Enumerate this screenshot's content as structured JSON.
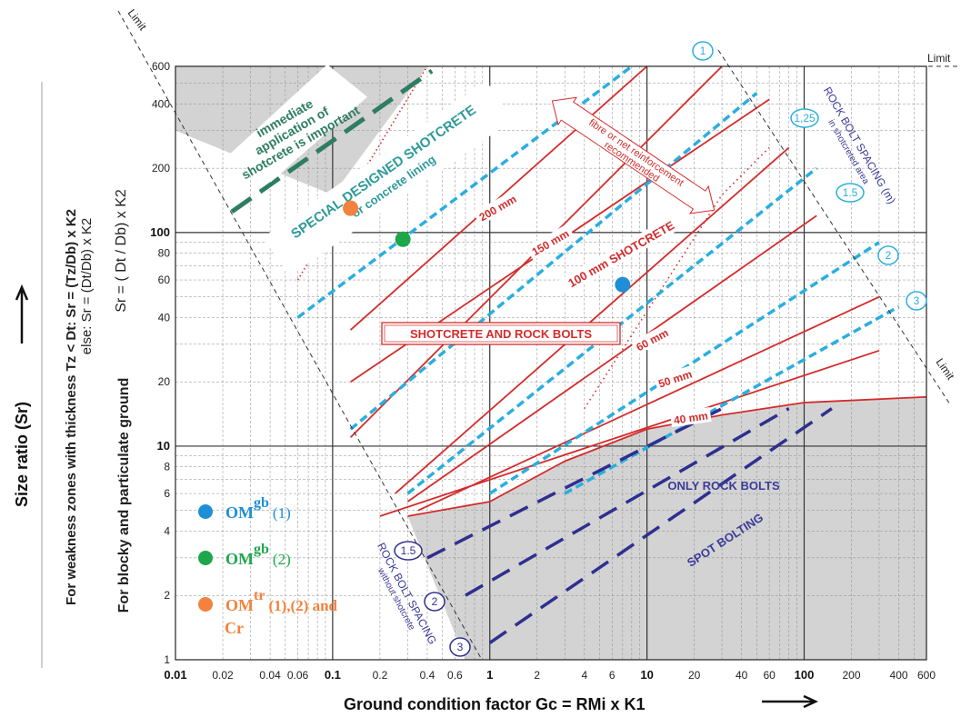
{
  "chart_data": {
    "type": "line",
    "x_scale": "log",
    "y_scale": "log",
    "xlim": [
      0.01,
      600
    ],
    "ylim": [
      1,
      600
    ],
    "grid": true,
    "xlabel": "Ground condition factor   Gc = RMi x K1",
    "ylabel_main": "Size ratio  (Sr)",
    "ylabel_weakness": "For weakness zones with thickness Tz < Dt: Sr = (Tz/Db) x K2",
    "ylabel_weakness_else": "else: Sr = (Dt/Db) x K2",
    "ylabel_blocky": "For blocky and particulate ground",
    "ylabel_formula": "Sr = ( Dt / Db) x K2",
    "x_tick_labels": [
      {
        "v": 0.01,
        "label": "0.01",
        "major": true
      },
      {
        "v": 0.02,
        "label": "0.02",
        "major": false
      },
      {
        "v": 0.04,
        "label": "0.04",
        "major": false
      },
      {
        "v": 0.06,
        "label": "0.06",
        "major": false
      },
      {
        "v": 0.1,
        "label": "0.1",
        "major": true
      },
      {
        "v": 0.2,
        "label": "0.2",
        "major": false
      },
      {
        "v": 0.4,
        "label": "0.4",
        "major": false
      },
      {
        "v": 0.6,
        "label": "0.6",
        "major": false
      },
      {
        "v": 1,
        "label": "1",
        "major": true
      },
      {
        "v": 2,
        "label": "2",
        "major": false
      },
      {
        "v": 4,
        "label": "4",
        "major": false
      },
      {
        "v": 6,
        "label": "6",
        "major": false
      },
      {
        "v": 10,
        "label": "10",
        "major": true
      },
      {
        "v": 20,
        "label": "20",
        "major": false
      },
      {
        "v": 40,
        "label": "40",
        "major": false
      },
      {
        "v": 60,
        "label": "60",
        "major": false
      },
      {
        "v": 100,
        "label": "100",
        "major": true
      },
      {
        "v": 200,
        "label": "200",
        "major": false
      },
      {
        "v": 400,
        "label": "400",
        "major": false
      },
      {
        "v": 600,
        "label": "600",
        "major": false
      }
    ],
    "y_tick_labels": [
      {
        "v": 1,
        "label": "1",
        "major": false
      },
      {
        "v": 2,
        "label": "2",
        "major": false
      },
      {
        "v": 4,
        "label": "4",
        "major": false
      },
      {
        "v": 6,
        "label": "6",
        "major": false
      },
      {
        "v": 8,
        "label": "8",
        "major": false
      },
      {
        "v": 10,
        "label": "10",
        "major": true
      },
      {
        "v": 20,
        "label": "20",
        "major": false
      },
      {
        "v": 40,
        "label": "40",
        "major": false
      },
      {
        "v": 60,
        "label": "60",
        "major": false
      },
      {
        "v": 80,
        "label": "80",
        "major": false
      },
      {
        "v": 100,
        "label": "100",
        "major": true
      },
      {
        "v": 200,
        "label": "200",
        "major": false
      },
      {
        "v": 400,
        "label": "400",
        "major": false
      },
      {
        "v": 600,
        "label": "600",
        "major": false
      }
    ],
    "shaded_regions": [
      {
        "name": "immediate-application",
        "color": "#d3d3d3",
        "points": [
          [
            0.01,
            600
          ],
          [
            0.4,
            600
          ],
          [
            0.1,
            150
          ],
          [
            0.01,
            300
          ]
        ]
      },
      {
        "name": "spot-bolting",
        "color": "#d3d3d3",
        "points": [
          [
            0.7,
            1
          ],
          [
            600,
            1
          ],
          [
            600,
            17
          ],
          [
            100,
            16
          ],
          [
            30,
            14
          ],
          [
            10,
            12
          ],
          [
            3,
            8.5
          ],
          [
            1,
            5.5
          ],
          [
            0.3,
            4.7
          ]
        ]
      }
    ],
    "limit_lines": [
      {
        "label": "Limit",
        "points": [
          [
            0.01,
            300
          ],
          [
            0.7,
            1
          ]
        ]
      },
      {
        "label": "Limit",
        "points": [
          [
            0.01,
            600
          ],
          [
            600,
            600
          ]
        ]
      },
      {
        "label": "Limit",
        "points": [
          [
            100,
            600
          ],
          [
            1000,
            17
          ]
        ]
      }
    ],
    "shotcrete_lines": [
      {
        "label": "200 mm",
        "points": [
          [
            0.13,
            11
          ],
          [
            30,
            600
          ]
        ]
      },
      {
        "label": "150 mm",
        "points": [
          [
            0.13,
            35
          ],
          [
            10,
            600
          ]
        ]
      },
      {
        "label": "100 mm SHOTCRETE",
        "points": [
          [
            0.13,
            20
          ],
          [
            60,
            420
          ]
        ]
      },
      {
        "label": "",
        "points": [
          [
            0.25,
            6
          ],
          [
            80,
            250
          ]
        ]
      },
      {
        "label": "",
        "points": [
          [
            0.3,
            5.5
          ],
          [
            120,
            120
          ]
        ]
      },
      {
        "label": "60 mm",
        "points": [
          [
            0.35,
            5
          ],
          [
            300,
            50
          ]
        ]
      },
      {
        "label": "50 mm",
        "points": [
          [
            0.2,
            4.7
          ],
          [
            300,
            28
          ]
        ]
      },
      {
        "label": "40 mm",
        "points": [
          [
            0.3,
            4.7
          ],
          [
            1,
            5.5
          ],
          [
            3,
            8.5
          ],
          [
            10,
            12
          ],
          [
            30,
            14
          ],
          [
            100,
            16
          ],
          [
            600,
            17
          ]
        ]
      }
    ],
    "special_shotcrete_boundary": [
      [
        0.06,
        60
      ],
      [
        0.4,
        600
      ]
    ],
    "bolt_spacing_shotcrete": [
      {
        "label": "1",
        "points": [
          [
            0.06,
            40
          ],
          [
            8,
            600
          ]
        ]
      },
      {
        "label": "1,25",
        "points": [
          [
            0.13,
            12
          ],
          [
            50,
            450
          ]
        ]
      },
      {
        "label": "1.5",
        "points": [
          [
            0.3,
            6
          ],
          [
            120,
            200
          ]
        ]
      },
      {
        "label": "2",
        "points": [
          [
            1,
            6
          ],
          [
            300,
            90
          ]
        ]
      },
      {
        "label": "3",
        "points": [
          [
            3,
            6
          ],
          [
            400,
            45
          ]
        ]
      }
    ],
    "bolt_spacing_no_shotcrete": [
      {
        "label": "1.5",
        "points": [
          [
            0.4,
            3
          ],
          [
            30,
            15
          ]
        ]
      },
      {
        "label": "2",
        "points": [
          [
            0.7,
            2
          ],
          [
            80,
            15
          ]
        ]
      },
      {
        "label": "3",
        "points": [
          [
            1,
            1.2
          ],
          [
            150,
            15
          ]
        ]
      }
    ],
    "fibre_reinforcement_boundary": [
      [
        4,
        15
      ],
      [
        30,
        150
      ],
      [
        60,
        250
      ]
    ],
    "region_labels": {
      "immediate": "immediate application of shotcrete is important",
      "special": "SPECIAL DESIGNED SHOTCRETE",
      "special_sub": "or concrete lining",
      "fibre": "fibre or net reinforcement recommended",
      "shotcrete_bolts": "SHOTCRETE  AND  ROCK BOLTS",
      "only_bolts": "ONLY ROCK BOLTS",
      "spot": "SPOT BOLTING",
      "bolt_spacing_shotcrete_title": "ROCK BOLT SPACING (m)",
      "bolt_spacing_shotcrete_sub": "in shotcreted area",
      "bolt_spacing_no_shotcrete_title": "ROCK BOLT SPACING",
      "bolt_spacing_no_shotcrete_sub": "without shotcrete"
    },
    "points": [
      {
        "x": 7,
        "y": 57,
        "color": "#1e8fd6"
      },
      {
        "x": 0.28,
        "y": 93,
        "color": "#1ea64b"
      },
      {
        "x": 0.13,
        "y": 130,
        "color": "#f2823d"
      }
    ],
    "legend": [
      {
        "color": "#1e8fd6",
        "text_color": "#1e8fd6",
        "base": "OM",
        "sup": "gb",
        "suffix": "(1)",
        "suffix2": ""
      },
      {
        "color": "#1ea64b",
        "text_color": "#1ea64b",
        "base": "OM",
        "sup": "gb",
        "suffix": "(2)",
        "suffix2": ""
      },
      {
        "color": "#f2823d",
        "text_color": "#f2823d",
        "base": "OM",
        "sup": "tr",
        "suffix": "(1),(2) and",
        "suffix2": "Cr"
      }
    ],
    "legend_placement": "bottom-left",
    "colors": {
      "shotcrete": "#d42b2b",
      "bolt_shotcrete": "#2aaee0",
      "bolt_dark": "#2f2f8f",
      "immediate_dash": "#2e7d62",
      "grid": "#888888",
      "text_blue": "#3b3b9a"
    }
  }
}
